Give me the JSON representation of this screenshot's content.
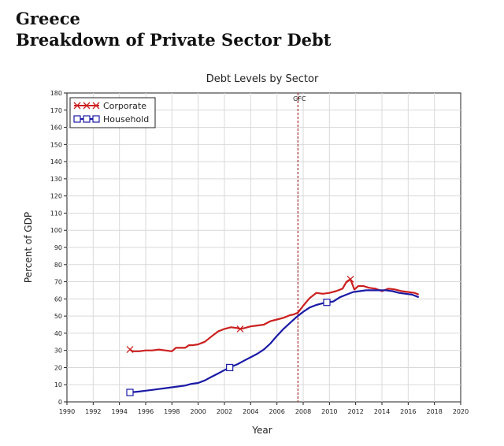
{
  "header": {
    "title_line1": "Greece",
    "title_line2": "Breakdown of Private Sector Debt"
  },
  "chart_data": {
    "type": "line",
    "title": "Debt Levels by Sector",
    "xlabel": "Year",
    "ylabel": "Percent of GDP",
    "xlim": [
      1990,
      2020
    ],
    "ylim": [
      0,
      180
    ],
    "x_ticks": [
      1990,
      1992,
      1994,
      1996,
      1998,
      2000,
      2002,
      2004,
      2006,
      2008,
      2010,
      2012,
      2014,
      2016,
      2018,
      2020
    ],
    "y_ticks": [
      0,
      10,
      20,
      30,
      40,
      50,
      60,
      70,
      80,
      90,
      100,
      110,
      120,
      130,
      140,
      150,
      160,
      170,
      180
    ],
    "grid": true,
    "legend_position": "top-left",
    "vline": {
      "x": 2007.6,
      "label": "GFC",
      "color": "#a52a2a"
    },
    "series": [
      {
        "name": "Corporate",
        "color": "#cc1f1f",
        "marker": "x",
        "marker_x": [
          1994.8,
          2003.2,
          2011.6
        ],
        "x": [
          1994.8,
          1995.0,
          1995.5,
          1996.0,
          1996.5,
          1997.0,
          1997.5,
          1998.0,
          1998.3,
          1998.6,
          1999.0,
          1999.3,
          1999.6,
          2000.0,
          2000.5,
          2001.0,
          2001.5,
          2002.0,
          2002.5,
          2003.0,
          2003.2,
          2003.5,
          2004.0,
          2004.5,
          2005.0,
          2005.5,
          2006.0,
          2006.5,
          2007.0,
          2007.3,
          2007.6,
          2008.0,
          2008.5,
          2009.0,
          2009.5,
          2010.0,
          2010.5,
          2011.0,
          2011.3,
          2011.6,
          2011.9,
          2012.2,
          2012.6,
          2013.0,
          2013.5,
          2014.0,
          2014.5,
          2015.0,
          2015.5,
          2016.0,
          2016.5,
          2016.8
        ],
        "y": [
          30.5,
          29.5,
          29.5,
          30.0,
          30.0,
          30.5,
          30.0,
          29.5,
          31.5,
          31.5,
          31.5,
          33.0,
          33.0,
          33.5,
          35.0,
          38.0,
          41.0,
          42.5,
          43.5,
          43.0,
          42.5,
          43.0,
          44.0,
          44.5,
          45.0,
          47.0,
          48.0,
          49.0,
          50.5,
          51.0,
          52.0,
          56.0,
          60.5,
          63.5,
          63.0,
          63.5,
          64.5,
          66.0,
          70.0,
          71.5,
          65.5,
          67.5,
          67.5,
          66.5,
          66.0,
          64.5,
          66.0,
          65.5,
          64.5,
          64.0,
          63.5,
          62.5
        ]
      },
      {
        "name": "Household",
        "color": "#1a1aa6",
        "marker": "square",
        "marker_x": [
          1994.8,
          2002.4,
          2009.8
        ],
        "x": [
          1994.8,
          1995.5,
          1996.0,
          1996.5,
          1997.0,
          1997.5,
          1998.0,
          1998.5,
          1999.0,
          1999.5,
          2000.0,
          2000.5,
          2001.0,
          2001.5,
          2002.0,
          2002.4,
          2003.0,
          2003.5,
          2004.0,
          2004.5,
          2005.0,
          2005.5,
          2006.0,
          2006.5,
          2007.0,
          2007.5,
          2008.0,
          2008.5,
          2009.0,
          2009.5,
          2009.8,
          2010.3,
          2010.8,
          2011.3,
          2011.8,
          2012.3,
          2012.8,
          2013.3,
          2013.8,
          2014.3,
          2014.8,
          2015.3,
          2015.8,
          2016.3,
          2016.8
        ],
        "y": [
          5.5,
          6.0,
          6.5,
          7.0,
          7.5,
          8.0,
          8.5,
          9.0,
          9.5,
          10.5,
          11.0,
          12.5,
          14.5,
          16.5,
          18.5,
          20.0,
          22.0,
          24.0,
          26.0,
          28.0,
          30.5,
          34.0,
          38.5,
          42.5,
          46.0,
          49.5,
          52.5,
          55.0,
          56.5,
          57.5,
          58.0,
          58.5,
          61.0,
          62.5,
          64.0,
          64.5,
          65.0,
          65.0,
          65.0,
          65.0,
          64.5,
          63.5,
          63.0,
          62.5,
          61.0
        ]
      }
    ]
  }
}
